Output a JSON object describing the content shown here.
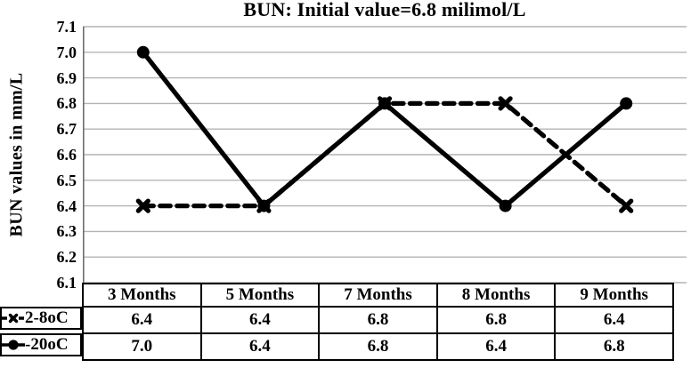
{
  "title": "BUN: Initial value=6.8 milimol/L",
  "y_axis": {
    "label": "BUN values in mm/L",
    "ticks": [
      "7.1",
      "7.0",
      "6.9",
      "6.8",
      "6.7",
      "6.6",
      "6.5",
      "6.4",
      "6.3",
      "6.2",
      "6.1"
    ]
  },
  "chart_data": {
    "type": "line",
    "title": "BUN: Initial value=6.8 milimol/L",
    "xlabel": "",
    "ylabel": "BUN values in mm/L",
    "categories": [
      "3 Months",
      "5 Months",
      "7 Months",
      "8 Months",
      "9 Months"
    ],
    "series": [
      {
        "name": "2-8oC",
        "values": [
          6.4,
          6.4,
          6.8,
          6.8,
          6.4
        ],
        "line": "dashed",
        "marker": "x",
        "color": "#000000"
      },
      {
        "name": "-20oC",
        "values": [
          7.0,
          6.4,
          6.8,
          6.4,
          6.8
        ],
        "line": "solid",
        "marker": "circle",
        "color": "#000000"
      }
    ],
    "ylim": [
      6.1,
      7.1
    ],
    "ytick_step": 0.1,
    "grid": true,
    "gridline_color": "#b4b4b4",
    "legend_position": "table-left"
  },
  "table": {
    "columns": [
      "3 Months",
      "5 Months",
      "7 Months",
      "8 Months",
      "9 Months"
    ],
    "rows": [
      {
        "label": "2-8oC",
        "marker": "x-dashed-line",
        "values": [
          "6.4",
          "6.4",
          "6.8",
          "6.8",
          "6.4"
        ]
      },
      {
        "label": "-20oC",
        "marker": "circle-solid-line",
        "values": [
          "7.0",
          "6.4",
          "6.8",
          "6.4",
          "6.8"
        ]
      }
    ]
  }
}
